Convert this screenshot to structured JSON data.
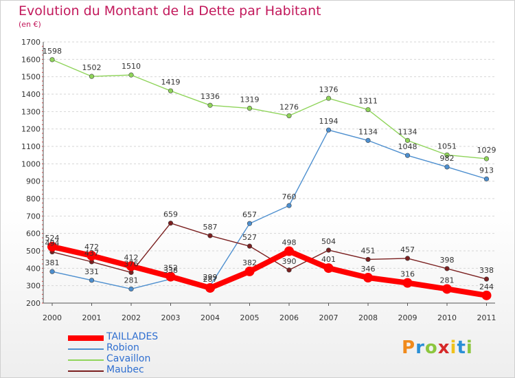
{
  "header": {
    "title": "Evolution du Montant de la Dette par Habitant",
    "subtitle": "(en €)"
  },
  "colors": {
    "title": "#c2185b",
    "grid": "#d6d6d6",
    "legend_text": "#2f6fd0"
  },
  "logo": {
    "text": "Proxiti"
  },
  "chart_data": {
    "type": "line",
    "title": "Evolution du Montant de la Dette par Habitant",
    "subtitle": "(en €)",
    "x": [
      "2000",
      "2001",
      "2002",
      "2003",
      "2004",
      "2005",
      "2006",
      "2007",
      "2008",
      "2009",
      "2010",
      "2011"
    ],
    "ylim": [
      200,
      1700
    ],
    "y_ticks": [
      200,
      300,
      400,
      500,
      600,
      700,
      800,
      900,
      1000,
      1100,
      1200,
      1300,
      1400,
      1500,
      1600,
      1700
    ],
    "grid": "horizontal-dashed",
    "legend_position": "bottom-left",
    "series": [
      {
        "name": "TAILLADES",
        "color": "#ff0000",
        "emphasis": true,
        "values": [
          524,
          472,
          412,
          352,
          287,
          382,
          498,
          401,
          346,
          316,
          281,
          244
        ]
      },
      {
        "name": "Robion",
        "color": "#4d8fcf",
        "values": [
          381,
          331,
          281,
          338,
          299,
          657,
          760,
          1194,
          1134,
          1048,
          982,
          913
        ]
      },
      {
        "name": "Cavaillon",
        "color": "#8fd45a",
        "values": [
          1598,
          1502,
          1510,
          1419,
          1336,
          1319,
          1276,
          1376,
          1311,
          1134,
          1051,
          1029
        ]
      },
      {
        "name": "Maubec",
        "color": "#7a1f1f",
        "values": [
          494,
          437,
          376,
          659,
          587,
          527,
          390,
          504,
          451,
          457,
          398,
          338
        ]
      }
    ]
  }
}
